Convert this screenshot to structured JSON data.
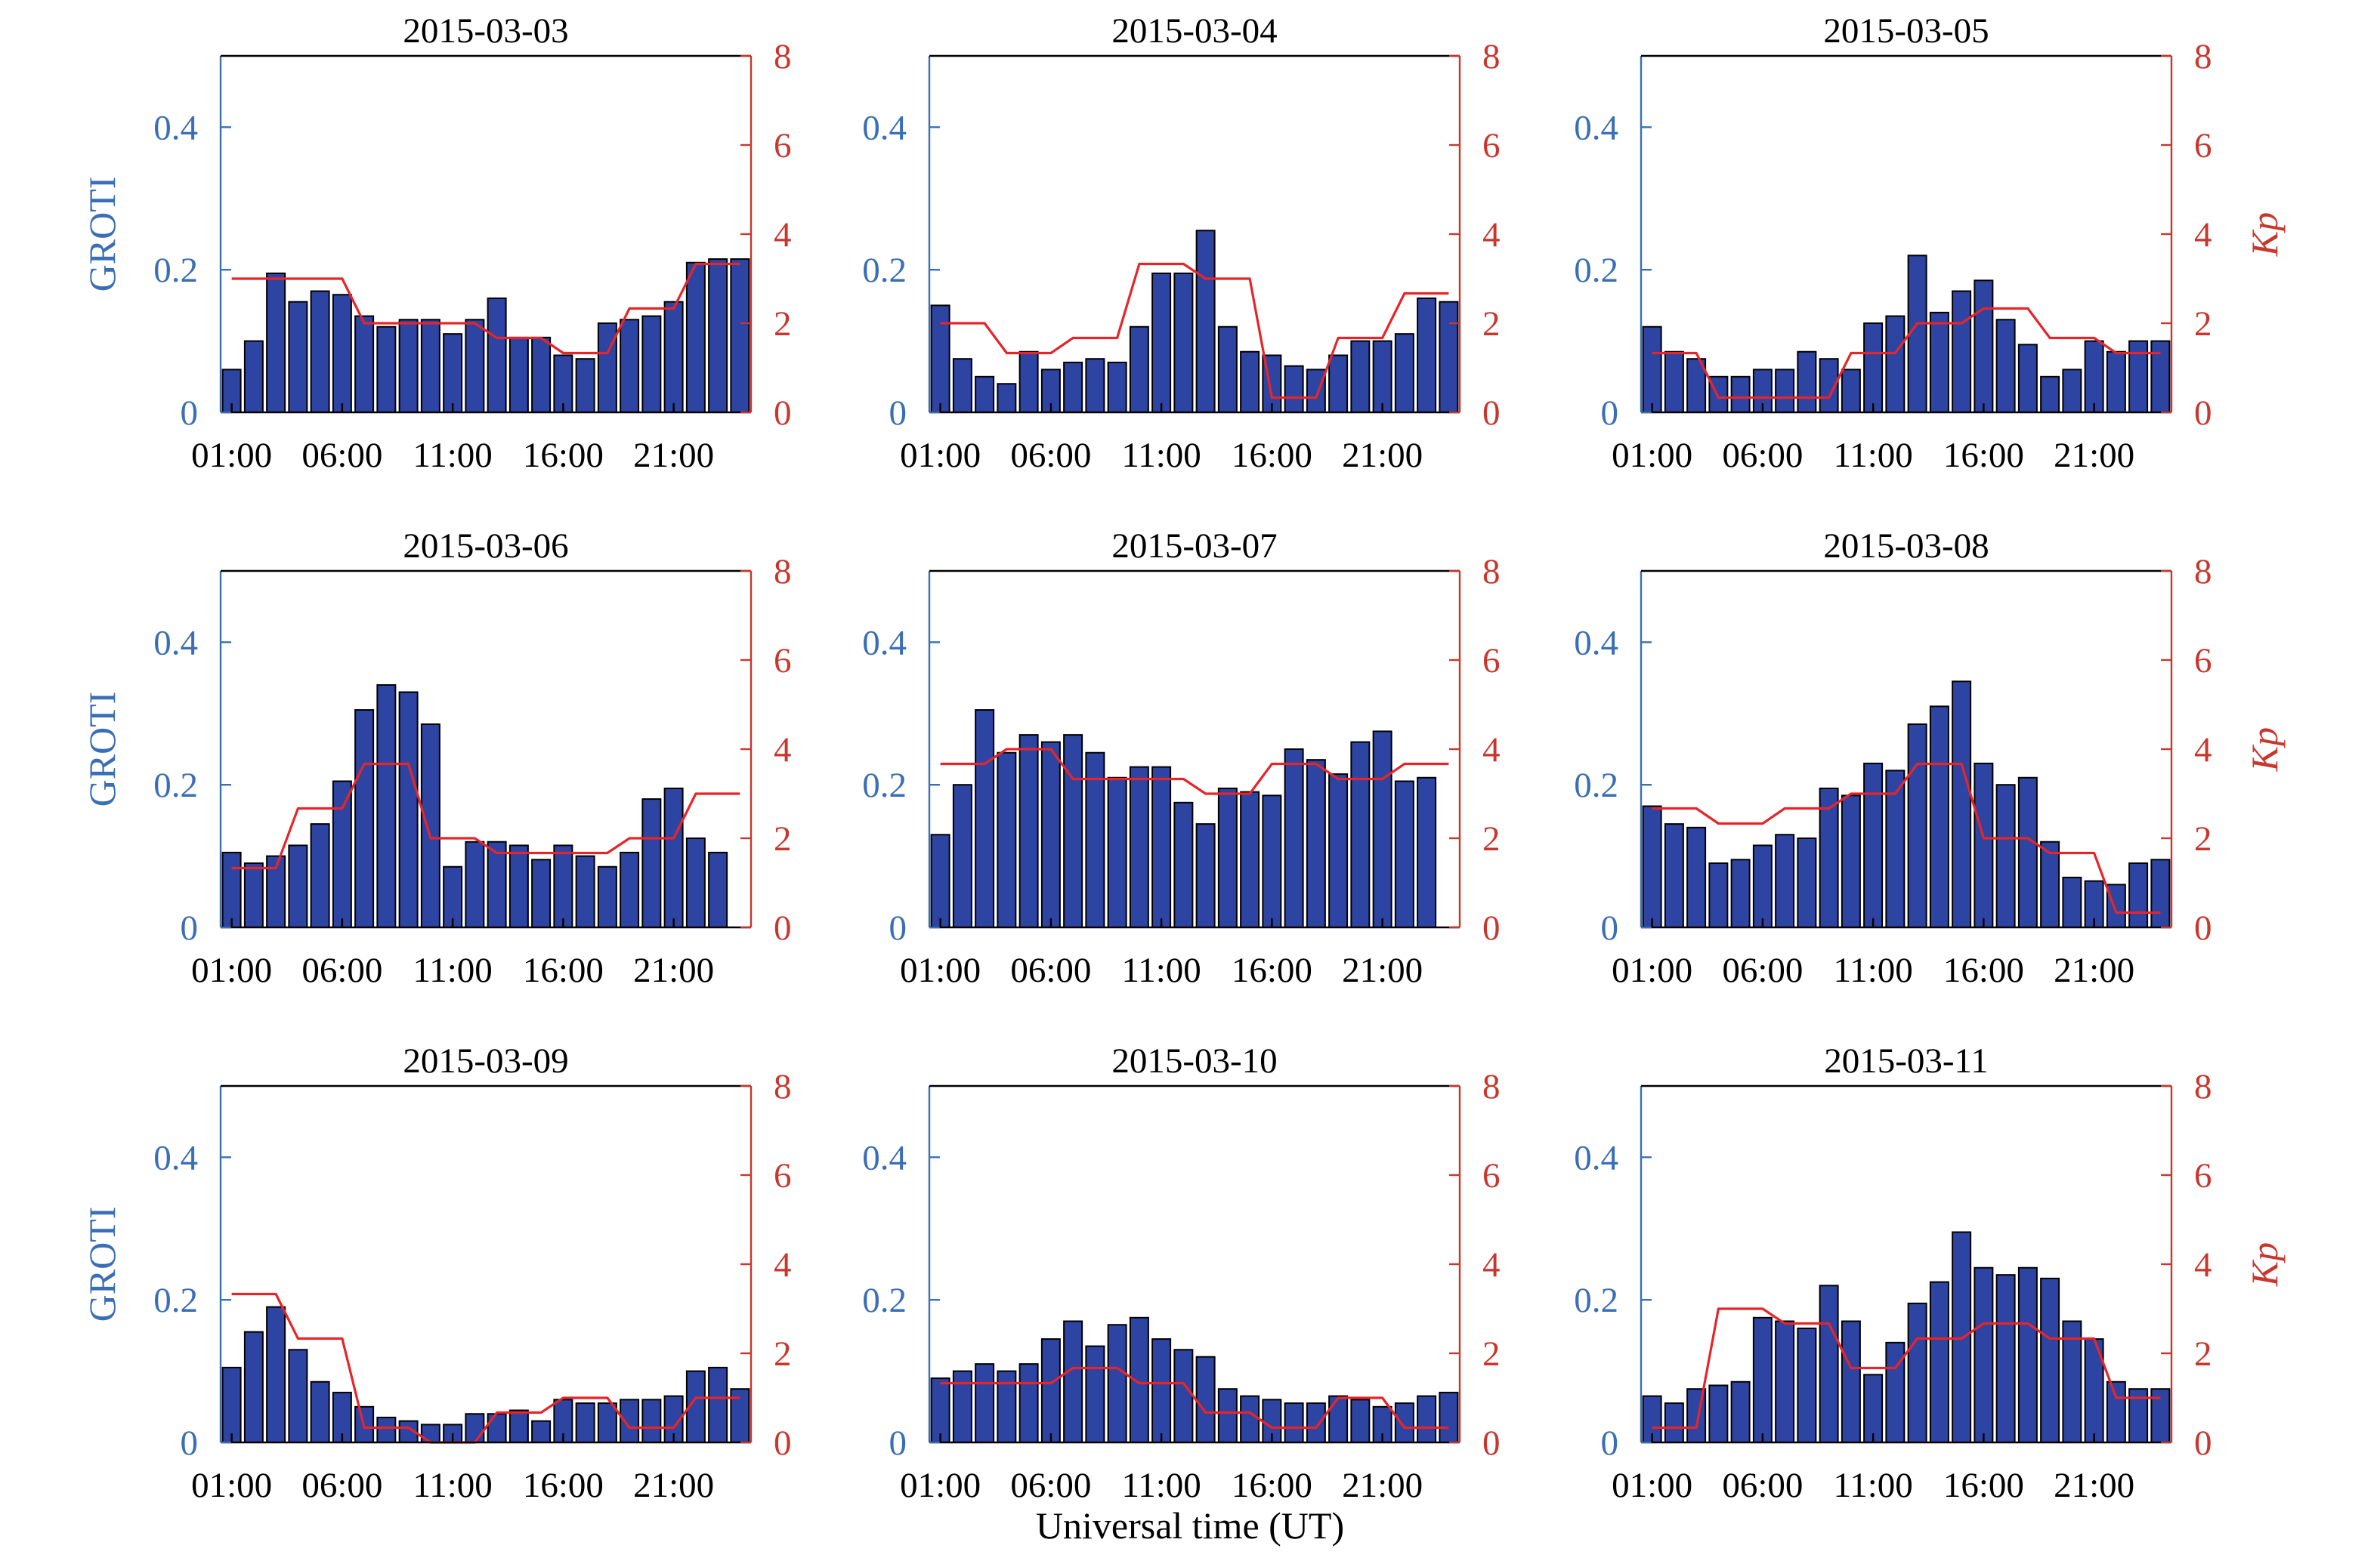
{
  "figure": {
    "xlabel": "Universal time (UT)",
    "colors": {
      "bars": "#2E44A3",
      "bar_edge": "#000000",
      "kp_line": "#E5252A",
      "left_axis": "#3A6EB5",
      "right_axis": "#C8372D"
    }
  },
  "chart_data": [
    {
      "type": "bar",
      "title": "2015-03-03",
      "ylabel": "GROTI",
      "y2label": "",
      "ylim": [
        0,
        0.5
      ],
      "y2lim": [
        0,
        8
      ],
      "yticks": [
        "0",
        "0.2",
        "0.4"
      ],
      "y2ticks": [
        "0",
        "2",
        "4",
        "6",
        "8"
      ],
      "xticks": [
        "01:00",
        "06:00",
        "11:00",
        "16:00",
        "21:00"
      ],
      "categories": [
        "01:00",
        "02:00",
        "03:00",
        "04:00",
        "05:00",
        "06:00",
        "07:00",
        "08:00",
        "09:00",
        "10:00",
        "11:00",
        "12:00",
        "13:00",
        "14:00",
        "15:00",
        "16:00",
        "17:00",
        "18:00",
        "19:00",
        "20:00",
        "21:00",
        "22:00",
        "23:00",
        "24:00"
      ],
      "series": [
        {
          "name": "GROTI",
          "axis": "left",
          "values": [
            0.06,
            0.1,
            0.195,
            0.155,
            0.17,
            0.165,
            0.135,
            0.12,
            0.13,
            0.13,
            0.11,
            0.13,
            0.16,
            0.105,
            0.105,
            0.08,
            0.075,
            0.125,
            0.13,
            0.135,
            0.155,
            0.21,
            0.215,
            0.215
          ]
        },
        {
          "name": "Kp",
          "axis": "right",
          "values": [
            3,
            3,
            3,
            3,
            3,
            3,
            2,
            2,
            2,
            2,
            2,
            2,
            1.67,
            1.67,
            1.67,
            1.33,
            1.33,
            1.33,
            2.33,
            2.33,
            2.33,
            3.33,
            3.33,
            3.33
          ]
        }
      ]
    },
    {
      "type": "bar",
      "title": "2015-03-04",
      "ylabel": "",
      "y2label": "",
      "ylim": [
        0,
        0.5
      ],
      "y2lim": [
        0,
        8
      ],
      "yticks": [
        "0",
        "0.2",
        "0.4"
      ],
      "y2ticks": [
        "0",
        "2",
        "4",
        "6",
        "8"
      ],
      "xticks": [
        "01:00",
        "06:00",
        "11:00",
        "16:00",
        "21:00"
      ],
      "categories": [
        "01:00",
        "02:00",
        "03:00",
        "04:00",
        "05:00",
        "06:00",
        "07:00",
        "08:00",
        "09:00",
        "10:00",
        "11:00",
        "12:00",
        "13:00",
        "14:00",
        "15:00",
        "16:00",
        "17:00",
        "18:00",
        "19:00",
        "20:00",
        "21:00",
        "22:00",
        "23:00",
        "24:00"
      ],
      "series": [
        {
          "name": "GROTI",
          "axis": "left",
          "values": [
            0.15,
            0.075,
            0.05,
            0.04,
            0.085,
            0.06,
            0.07,
            0.075,
            0.07,
            0.12,
            0.195,
            0.195,
            0.255,
            0.12,
            0.085,
            0.08,
            0.065,
            0.06,
            0.08,
            0.1,
            0.1,
            0.11,
            0.16,
            0.155
          ]
        },
        {
          "name": "Kp",
          "axis": "right",
          "values": [
            2,
            2,
            2,
            1.33,
            1.33,
            1.33,
            1.67,
            1.67,
            1.67,
            3.33,
            3.33,
            3.33,
            3,
            3,
            3,
            0.33,
            0.33,
            0.33,
            1.67,
            1.67,
            1.67,
            2.67,
            2.67,
            2.67
          ]
        }
      ]
    },
    {
      "type": "bar",
      "title": "2015-03-05",
      "ylabel": "",
      "y2label": "Kp",
      "ylim": [
        0,
        0.5
      ],
      "y2lim": [
        0,
        8
      ],
      "yticks": [
        "0",
        "0.2",
        "0.4"
      ],
      "y2ticks": [
        "0",
        "2",
        "4",
        "6",
        "8"
      ],
      "xticks": [
        "01:00",
        "06:00",
        "11:00",
        "16:00",
        "21:00"
      ],
      "categories": [
        "01:00",
        "02:00",
        "03:00",
        "04:00",
        "05:00",
        "06:00",
        "07:00",
        "08:00",
        "09:00",
        "10:00",
        "11:00",
        "12:00",
        "13:00",
        "14:00",
        "15:00",
        "16:00",
        "17:00",
        "18:00",
        "19:00",
        "20:00",
        "21:00",
        "22:00",
        "23:00",
        "24:00"
      ],
      "series": [
        {
          "name": "GROTI",
          "axis": "left",
          "values": [
            0.12,
            0.085,
            0.075,
            0.05,
            0.05,
            0.06,
            0.06,
            0.085,
            0.075,
            0.06,
            0.125,
            0.135,
            0.22,
            0.14,
            0.17,
            0.185,
            0.13,
            0.095,
            0.05,
            0.06,
            0.1,
            0.085,
            0.1,
            0.1
          ]
        },
        {
          "name": "Kp",
          "axis": "right",
          "values": [
            1.33,
            1.33,
            1.33,
            0.33,
            0.33,
            0.33,
            0.33,
            0.33,
            0.33,
            1.33,
            1.33,
            1.33,
            2,
            2,
            2,
            2.33,
            2.33,
            2.33,
            1.67,
            1.67,
            1.67,
            1.33,
            1.33,
            1.33
          ]
        }
      ]
    },
    {
      "type": "bar",
      "title": "2015-03-06",
      "ylabel": "GROTI",
      "y2label": "",
      "ylim": [
        0,
        0.5
      ],
      "y2lim": [
        0,
        8
      ],
      "yticks": [
        "0",
        "0.2",
        "0.4"
      ],
      "y2ticks": [
        "0",
        "2",
        "4",
        "6",
        "8"
      ],
      "xticks": [
        "01:00",
        "06:00",
        "11:00",
        "16:00",
        "21:00"
      ],
      "categories": [
        "01:00",
        "02:00",
        "03:00",
        "04:00",
        "05:00",
        "06:00",
        "07:00",
        "08:00",
        "09:00",
        "10:00",
        "11:00",
        "12:00",
        "13:00",
        "14:00",
        "15:00",
        "16:00",
        "17:00",
        "18:00",
        "19:00",
        "20:00",
        "21:00",
        "22:00",
        "23:00",
        "24:00"
      ],
      "series": [
        {
          "name": "GROTI",
          "axis": "left",
          "values": [
            0.105,
            0.09,
            0.1,
            0.115,
            0.145,
            0.205,
            0.305,
            0.34,
            0.33,
            0.285,
            0.085,
            0.12,
            0.12,
            0.115,
            0.095,
            0.115,
            0.1,
            0.085,
            0.105,
            0.18,
            0.195,
            0.125,
            0.105,
            0.0
          ]
        },
        {
          "name": "Kp",
          "axis": "right",
          "values": [
            1.33,
            1.33,
            1.33,
            2.67,
            2.67,
            2.67,
            3.67,
            3.67,
            3.67,
            2,
            2,
            2,
            1.67,
            1.67,
            1.67,
            1.67,
            1.67,
            1.67,
            2,
            2,
            2,
            3,
            3,
            3
          ]
        }
      ]
    },
    {
      "type": "bar",
      "title": "2015-03-07",
      "ylabel": "",
      "y2label": "",
      "ylim": [
        0,
        0.5
      ],
      "y2lim": [
        0,
        8
      ],
      "yticks": [
        "0",
        "0.2",
        "0.4"
      ],
      "y2ticks": [
        "0",
        "2",
        "4",
        "6",
        "8"
      ],
      "xticks": [
        "01:00",
        "06:00",
        "11:00",
        "16:00",
        "21:00"
      ],
      "categories": [
        "01:00",
        "02:00",
        "03:00",
        "04:00",
        "05:00",
        "06:00",
        "07:00",
        "08:00",
        "09:00",
        "10:00",
        "11:00",
        "12:00",
        "13:00",
        "14:00",
        "15:00",
        "16:00",
        "17:00",
        "18:00",
        "19:00",
        "20:00",
        "21:00",
        "22:00",
        "23:00",
        "24:00"
      ],
      "series": [
        {
          "name": "GROTI",
          "axis": "left",
          "values": [
            0.13,
            0.2,
            0.305,
            0.245,
            0.27,
            0.26,
            0.27,
            0.245,
            0.21,
            0.225,
            0.225,
            0.175,
            0.145,
            0.195,
            0.19,
            0.185,
            0.25,
            0.235,
            0.215,
            0.26,
            0.275,
            0.205,
            0.21,
            0.0
          ]
        },
        {
          "name": "Kp",
          "axis": "right",
          "values": [
            3.67,
            3.67,
            3.67,
            4,
            4,
            4,
            3.33,
            3.33,
            3.33,
            3.33,
            3.33,
            3.33,
            3,
            3,
            3,
            3.67,
            3.67,
            3.67,
            3.33,
            3.33,
            3.33,
            3.67,
            3.67,
            3.67
          ]
        }
      ]
    },
    {
      "type": "bar",
      "title": "2015-03-08",
      "ylabel": "",
      "y2label": "Kp",
      "ylim": [
        0,
        0.5
      ],
      "y2lim": [
        0,
        8
      ],
      "yticks": [
        "0",
        "0.2",
        "0.4"
      ],
      "y2ticks": [
        "0",
        "2",
        "4",
        "6",
        "8"
      ],
      "xticks": [
        "01:00",
        "06:00",
        "11:00",
        "16:00",
        "21:00"
      ],
      "categories": [
        "01:00",
        "02:00",
        "03:00",
        "04:00",
        "05:00",
        "06:00",
        "07:00",
        "08:00",
        "09:00",
        "10:00",
        "11:00",
        "12:00",
        "13:00",
        "14:00",
        "15:00",
        "16:00",
        "17:00",
        "18:00",
        "19:00",
        "20:00",
        "21:00",
        "22:00",
        "23:00",
        "24:00"
      ],
      "series": [
        {
          "name": "GROTI",
          "axis": "left",
          "values": [
            0.17,
            0.145,
            0.14,
            0.09,
            0.095,
            0.115,
            0.13,
            0.125,
            0.195,
            0.185,
            0.23,
            0.22,
            0.285,
            0.31,
            0.345,
            0.23,
            0.2,
            0.21,
            0.12,
            0.07,
            0.065,
            0.06,
            0.09,
            0.095
          ]
        },
        {
          "name": "Kp",
          "axis": "right",
          "values": [
            2.67,
            2.67,
            2.67,
            2.33,
            2.33,
            2.33,
            2.67,
            2.67,
            2.67,
            3,
            3,
            3,
            3.67,
            3.67,
            3.67,
            2,
            2,
            2,
            1.67,
            1.67,
            1.67,
            0.33,
            0.33,
            0.33
          ]
        }
      ]
    },
    {
      "type": "bar",
      "title": "2015-03-09",
      "ylabel": "GROTI",
      "y2label": "",
      "ylim": [
        0,
        0.5
      ],
      "y2lim": [
        0,
        8
      ],
      "yticks": [
        "0",
        "0.2",
        "0.4"
      ],
      "y2ticks": [
        "0",
        "2",
        "4",
        "6",
        "8"
      ],
      "xticks": [
        "01:00",
        "06:00",
        "11:00",
        "16:00",
        "21:00"
      ],
      "categories": [
        "01:00",
        "02:00",
        "03:00",
        "04:00",
        "05:00",
        "06:00",
        "07:00",
        "08:00",
        "09:00",
        "10:00",
        "11:00",
        "12:00",
        "13:00",
        "14:00",
        "15:00",
        "16:00",
        "17:00",
        "18:00",
        "19:00",
        "20:00",
        "21:00",
        "22:00",
        "23:00",
        "24:00"
      ],
      "series": [
        {
          "name": "GROTI",
          "axis": "left",
          "values": [
            0.105,
            0.155,
            0.19,
            0.13,
            0.085,
            0.07,
            0.05,
            0.035,
            0.03,
            0.025,
            0.025,
            0.04,
            0.04,
            0.045,
            0.03,
            0.06,
            0.055,
            0.055,
            0.06,
            0.06,
            0.065,
            0.1,
            0.105,
            0.075
          ]
        },
        {
          "name": "Kp",
          "axis": "right",
          "values": [
            3.33,
            3.33,
            3.33,
            2.33,
            2.33,
            2.33,
            0.33,
            0.33,
            0.33,
            0,
            0,
            0,
            0.67,
            0.67,
            0.67,
            1,
            1,
            1,
            0.33,
            0.33,
            0.33,
            1,
            1,
            1
          ]
        }
      ]
    },
    {
      "type": "bar",
      "title": "2015-03-10",
      "ylabel": "",
      "y2label": "",
      "ylim": [
        0,
        0.5
      ],
      "y2lim": [
        0,
        8
      ],
      "yticks": [
        "0",
        "0.2",
        "0.4"
      ],
      "y2ticks": [
        "0",
        "2",
        "4",
        "6",
        "8"
      ],
      "xticks": [
        "01:00",
        "06:00",
        "11:00",
        "16:00",
        "21:00"
      ],
      "categories": [
        "01:00",
        "02:00",
        "03:00",
        "04:00",
        "05:00",
        "06:00",
        "07:00",
        "08:00",
        "09:00",
        "10:00",
        "11:00",
        "12:00",
        "13:00",
        "14:00",
        "15:00",
        "16:00",
        "17:00",
        "18:00",
        "19:00",
        "20:00",
        "21:00",
        "22:00",
        "23:00",
        "24:00"
      ],
      "series": [
        {
          "name": "GROTI",
          "axis": "left",
          "values": [
            0.09,
            0.1,
            0.11,
            0.1,
            0.11,
            0.145,
            0.17,
            0.135,
            0.165,
            0.175,
            0.145,
            0.13,
            0.12,
            0.075,
            0.065,
            0.06,
            0.055,
            0.055,
            0.065,
            0.06,
            0.05,
            0.055,
            0.065,
            0.07
          ]
        },
        {
          "name": "Kp",
          "axis": "right",
          "values": [
            1.33,
            1.33,
            1.33,
            1.33,
            1.33,
            1.33,
            1.67,
            1.67,
            1.67,
            1.33,
            1.33,
            1.33,
            0.67,
            0.67,
            0.67,
            0.33,
            0.33,
            0.33,
            1,
            1,
            1,
            0.33,
            0.33,
            0.33
          ]
        }
      ]
    },
    {
      "type": "bar",
      "title": "2015-03-11",
      "ylabel": "",
      "y2label": "Kp",
      "ylim": [
        0,
        0.5
      ],
      "y2lim": [
        0,
        8
      ],
      "yticks": [
        "0",
        "0.2",
        "0.4"
      ],
      "y2ticks": [
        "0",
        "2",
        "4",
        "6",
        "8"
      ],
      "xticks": [
        "01:00",
        "06:00",
        "11:00",
        "16:00",
        "21:00"
      ],
      "categories": [
        "01:00",
        "02:00",
        "03:00",
        "04:00",
        "05:00",
        "06:00",
        "07:00",
        "08:00",
        "09:00",
        "10:00",
        "11:00",
        "12:00",
        "13:00",
        "14:00",
        "15:00",
        "16:00",
        "17:00",
        "18:00",
        "19:00",
        "20:00",
        "21:00",
        "22:00",
        "23:00",
        "24:00"
      ],
      "series": [
        {
          "name": "GROTI",
          "axis": "left",
          "values": [
            0.065,
            0.055,
            0.075,
            0.08,
            0.085,
            0.175,
            0.17,
            0.16,
            0.22,
            0.17,
            0.095,
            0.14,
            0.195,
            0.225,
            0.295,
            0.245,
            0.235,
            0.245,
            0.23,
            0.17,
            0.145,
            0.085,
            0.075,
            0.075
          ]
        },
        {
          "name": "Kp",
          "axis": "right",
          "values": [
            0.33,
            0.33,
            0.33,
            3,
            3,
            3,
            2.67,
            2.67,
            2.67,
            1.67,
            1.67,
            1.67,
            2.33,
            2.33,
            2.33,
            2.67,
            2.67,
            2.67,
            2.33,
            2.33,
            2.33,
            1,
            1,
            1
          ]
        }
      ]
    }
  ]
}
